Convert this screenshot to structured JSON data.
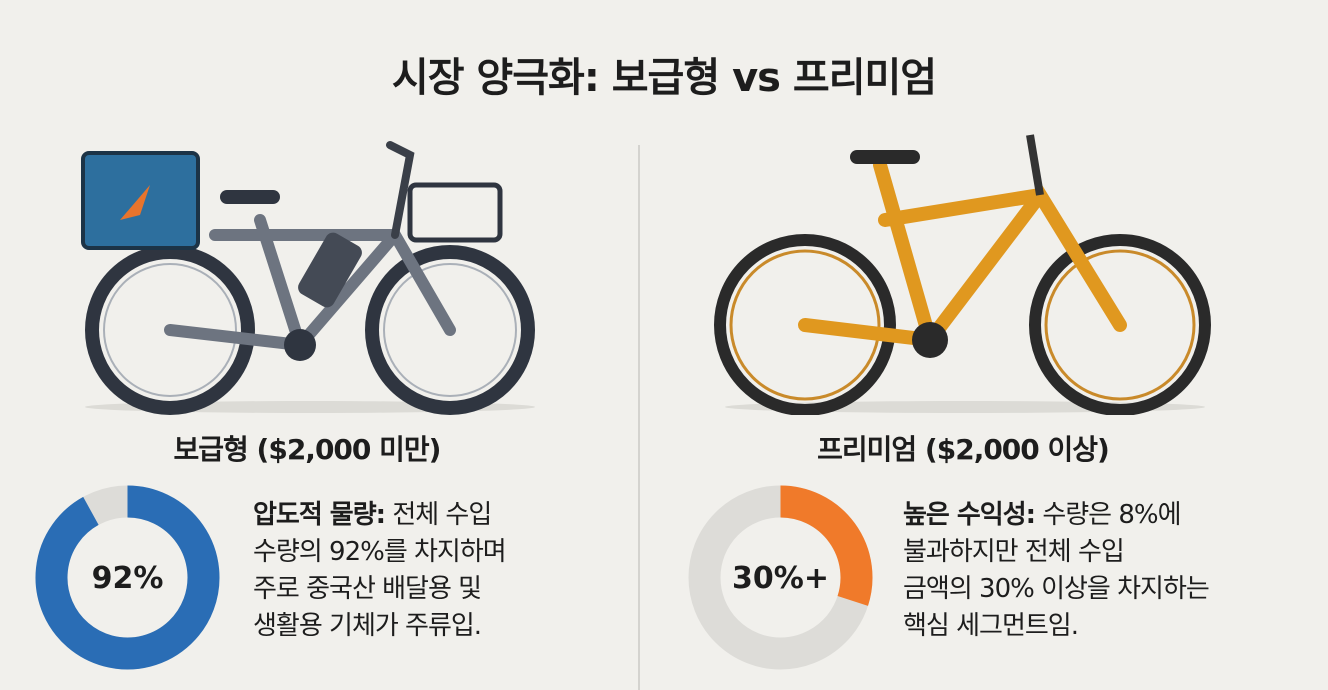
{
  "title": "시장 양극화: 보급형 vs 프리미엄",
  "left": {
    "heading": "보급형 ($2,000 미만)",
    "donut": {
      "value": 92,
      "label": "92%",
      "color": "#2a6db5",
      "track": "#dddcd8"
    },
    "desc_bold": "압도적 물량:",
    "desc_lines": [
      " 전체 수입",
      "수량의 92%를 차지하며",
      "주로 중국산 배달용 및",
      "생활용 기체가 주류입."
    ]
  },
  "right": {
    "heading": "프리미엄 ($2,000 이상)",
    "donut": {
      "value": 30,
      "label": "30%+",
      "color": "#f07a2a",
      "track": "#dddcd8"
    },
    "desc_bold": "높은 수익성:",
    "desc_lines": [
      " 수량은 8%에",
      "불과하지만 전체 수입",
      "금액의 30% 이상을 차지하는",
      "핵심 세그먼트임."
    ]
  }
}
